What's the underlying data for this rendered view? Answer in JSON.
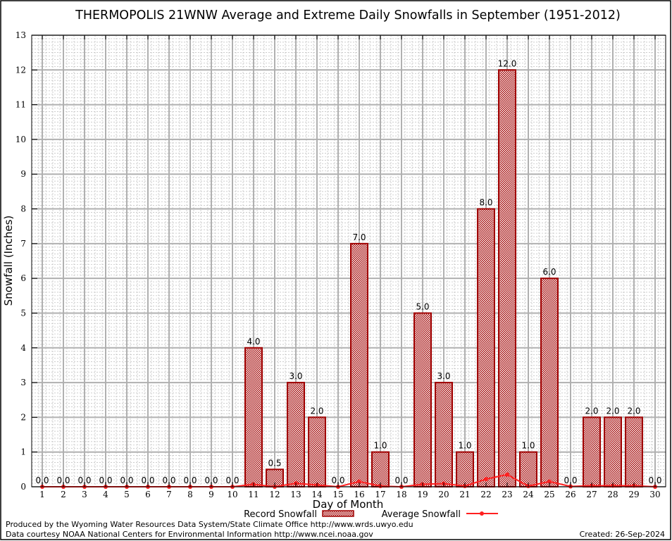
{
  "chart_data": {
    "type": "bar",
    "title": "THERMOPOLIS 21WNW Average and Extreme Daily Snowfalls in September (1951-2012)",
    "xlabel": "Day of Month",
    "ylabel": "Snowfall (Inches)",
    "ylim": [
      0,
      13
    ],
    "xlim": [
      0.5,
      30.5
    ],
    "grid": true,
    "categories": [
      1,
      2,
      3,
      4,
      5,
      6,
      7,
      8,
      9,
      10,
      11,
      12,
      13,
      14,
      15,
      16,
      17,
      18,
      19,
      20,
      21,
      22,
      23,
      24,
      25,
      26,
      27,
      28,
      29,
      30
    ],
    "yticks": [
      0,
      1,
      2,
      3,
      4,
      5,
      6,
      7,
      8,
      9,
      10,
      11,
      12,
      13
    ],
    "series": [
      {
        "name": "Record Snowfall",
        "type": "bar",
        "color": "#a00000",
        "values": [
          0,
          0,
          0,
          0,
          0,
          0,
          0,
          0,
          0,
          0,
          4,
          0.5,
          3,
          2,
          0,
          7,
          1,
          0,
          5,
          3,
          1,
          8,
          12,
          1,
          6,
          0,
          2,
          2,
          2,
          0
        ],
        "labels": [
          "0.0",
          "0.0",
          "0.0",
          "0.0",
          "0.0",
          "0.0",
          "0.0",
          "0.0",
          "0.0",
          "0.0",
          "4.0",
          "0.5",
          "3.0",
          "2.0",
          "0.0",
          "7.0",
          "1.0",
          "0.0",
          "5.0",
          "3.0",
          "1.0",
          "8.0",
          "12.0",
          "1.0",
          "6.0",
          "0.0",
          "2.0",
          "2.0",
          "2.0",
          "0.0"
        ]
      },
      {
        "name": "Average Snowfall",
        "type": "line",
        "color": "#ff2020",
        "values": [
          0,
          0,
          0,
          0,
          0,
          0,
          0,
          0,
          0,
          0,
          0.07,
          0,
          0.1,
          0.05,
          0,
          0.15,
          0.02,
          0,
          0.07,
          0.09,
          0.02,
          0.22,
          0.35,
          0.02,
          0.15,
          0.01,
          0.03,
          0.03,
          0.03,
          0
        ]
      }
    ],
    "legend": "bottom"
  },
  "footer": {
    "produced": "Produced by the Wyoming Water Resources Data System/State Climate Office http://www.wrds.uwyo.edu",
    "courtesy": "Data courtesy NOAA National Centers for Environmental Information http://www.ncei.noaa.gov",
    "created": "Created: 26-Sep-2024"
  }
}
